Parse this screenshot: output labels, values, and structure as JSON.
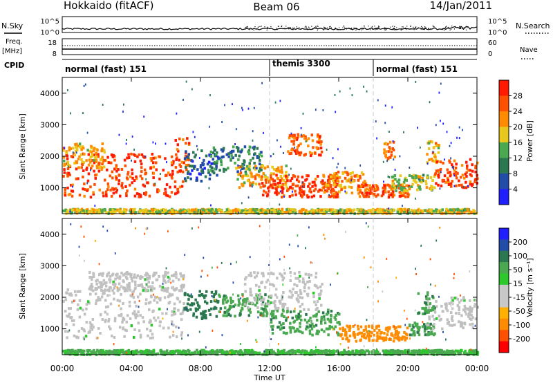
{
  "header": {
    "station": "Hokkaido (fitACF)",
    "beam": "Beam 06",
    "date": "14/Jan/2011"
  },
  "status_panels": {
    "nsky_label": "N.Sky",
    "nsearch_label": "N.Search",
    "freq_label_1": "Freq.",
    "freq_label_2": "[MHz]",
    "nave_label": "Nave",
    "cpid_label": "CPID",
    "count_ticks": [
      "10^5",
      "10^0"
    ],
    "freq_ticks": [
      "18",
      "8"
    ],
    "nave_ticks": [
      "60",
      "0"
    ]
  },
  "cpid_segments": [
    {
      "label": "normal (fast) 151",
      "start_hour": 0
    },
    {
      "label": "themis 3300",
      "start_hour": 12
    },
    {
      "label": "normal (fast) 151",
      "start_hour": 18
    }
  ],
  "x_axis": {
    "label": "Time UT",
    "ticks": [
      "00:00",
      "04:00",
      "08:00",
      "12:00",
      "16:00",
      "20:00",
      "00:00"
    ],
    "range_hours": [
      0,
      24
    ]
  },
  "colors": {
    "power_scale": [
      "#1f1fff",
      "#234ca8",
      "#2b7850",
      "#4aa850",
      "#e8c81c",
      "#ff8c00",
      "#ff5000",
      "#ff1a00"
    ],
    "velocity_scale": [
      "#ff0000",
      "#ff5000",
      "#ff8c00",
      "#ffb000",
      "#c8c8c8",
      "#c8c8c8",
      "#2cc82c",
      "#4aa850",
      "#2b7850",
      "#234ca8",
      "#1f1fff"
    ],
    "ground_scatter": "#c0c0c0"
  },
  "chart_data": [
    {
      "type": "heatmap",
      "title": "",
      "xlabel": "",
      "ylabel": "Slant Range [km]",
      "xlim": [
        0,
        24
      ],
      "ylim": [
        180,
        4500
      ],
      "y_ticks": [
        "1000",
        "2000",
        "3000",
        "4000"
      ],
      "colorbar": {
        "label": "Power [dB]",
        "ticks": [
          "28",
          "24",
          "20",
          "16",
          "12",
          "8",
          "4"
        ],
        "range": [
          0,
          32
        ]
      },
      "regions": [
        {
          "t0": 0.0,
          "t1": 7.0,
          "r0": 700,
          "r1": 2100,
          "level": 28
        },
        {
          "t0": 0.0,
          "t1": 2.5,
          "r0": 1600,
          "r1": 2400,
          "level": 20
        },
        {
          "t0": 6.5,
          "t1": 7.3,
          "r0": 1500,
          "r1": 2600,
          "level": 26
        },
        {
          "t0": 7.0,
          "t1": 9.0,
          "r0": 1200,
          "r1": 2200,
          "level": 6
        },
        {
          "t0": 8.5,
          "t1": 11.5,
          "r0": 1500,
          "r1": 2300,
          "level": 10
        },
        {
          "t0": 10.0,
          "t1": 13.0,
          "r0": 1000,
          "r1": 1700,
          "level": 20
        },
        {
          "t0": 11.5,
          "t1": 16.0,
          "r0": 700,
          "r1": 1400,
          "level": 28
        },
        {
          "t0": 13.0,
          "t1": 15.0,
          "r0": 2000,
          "r1": 2700,
          "level": 26
        },
        {
          "t0": 15.0,
          "t1": 17.5,
          "r0": 800,
          "r1": 1500,
          "level": 22
        },
        {
          "t0": 17.0,
          "t1": 20.0,
          "r0": 700,
          "r1": 1100,
          "level": 26
        },
        {
          "t0": 18.5,
          "t1": 19.2,
          "r0": 1900,
          "r1": 2500,
          "level": 24
        },
        {
          "t0": 19.0,
          "t1": 21.5,
          "r0": 900,
          "r1": 1400,
          "level": 16
        },
        {
          "t0": 21.0,
          "t1": 21.8,
          "r0": 1700,
          "r1": 2500,
          "level": 20
        },
        {
          "t0": 21.5,
          "t1": 24.0,
          "r0": 1000,
          "r1": 1900,
          "level": 28
        },
        {
          "t0": 0.0,
          "t1": 24.0,
          "r0": 180,
          "r1": 320,
          "level": 18
        }
      ]
    },
    {
      "type": "heatmap",
      "title": "",
      "xlabel": "Time UT",
      "ylabel": "Slant Range [km]",
      "xlim": [
        0,
        24
      ],
      "ylim": [
        180,
        4500
      ],
      "y_ticks": [
        "1000",
        "2000",
        "3000",
        "4000"
      ],
      "colorbar": {
        "label": "Velocity [m s⁻¹]",
        "ticks": [
          "200",
          "100",
          "50",
          "15",
          "-15",
          "-50",
          "-100",
          "-200"
        ],
        "range": [
          -250,
          250
        ]
      },
      "regions": [
        {
          "t0": 0.0,
          "t1": 7.0,
          "r0": 700,
          "r1": 2300,
          "level": 0,
          "ground": true
        },
        {
          "t0": 1.5,
          "t1": 7.0,
          "r0": 2200,
          "r1": 2800,
          "level": 0,
          "ground": true
        },
        {
          "t0": 7.0,
          "t1": 9.0,
          "r0": 1300,
          "r1": 2200,
          "level": 80
        },
        {
          "t0": 9.0,
          "t1": 12.0,
          "r0": 1400,
          "r1": 2100,
          "level": 40
        },
        {
          "t0": 10.5,
          "t1": 15.0,
          "r0": 1600,
          "r1": 2800,
          "level": 0,
          "ground": true
        },
        {
          "t0": 12.0,
          "t1": 16.0,
          "r0": 800,
          "r1": 1600,
          "level": 40
        },
        {
          "t0": 16.0,
          "t1": 20.0,
          "r0": 600,
          "r1": 1100,
          "level": -70
        },
        {
          "t0": 20.0,
          "t1": 21.5,
          "r0": 800,
          "r1": 1200,
          "level": 40
        },
        {
          "t0": 21.0,
          "t1": 24.0,
          "r0": 1000,
          "r1": 2000,
          "level": 0,
          "ground": true
        },
        {
          "t0": 20.5,
          "t1": 21.5,
          "r0": 1400,
          "r1": 2200,
          "level": 40
        },
        {
          "t0": 0.0,
          "t1": 24.0,
          "r0": 180,
          "r1": 320,
          "level": 20
        }
      ]
    }
  ]
}
